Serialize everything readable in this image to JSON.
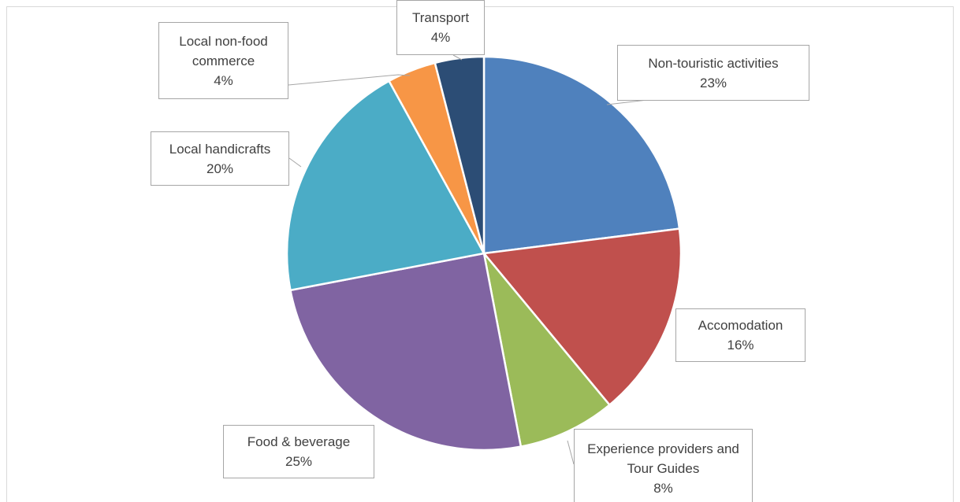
{
  "chart_data": {
    "type": "pie",
    "categories": [
      "Non-touristic activities",
      "Accomodation",
      "Experience providers and Tour Guides",
      "Food & beverage",
      "Local handicrafts",
      "Local non-food commerce",
      "Transport"
    ],
    "values": [
      23,
      16,
      8,
      25,
      20,
      4,
      4
    ],
    "value_labels": [
      "23%",
      "16%",
      "8%",
      "25%",
      "20%",
      "4%",
      "4%"
    ],
    "colors": [
      "#4f81bd",
      "#c0504d",
      "#9bbb59",
      "#8064a2",
      "#4bacc6",
      "#f79646",
      "#2c4d75"
    ]
  }
}
